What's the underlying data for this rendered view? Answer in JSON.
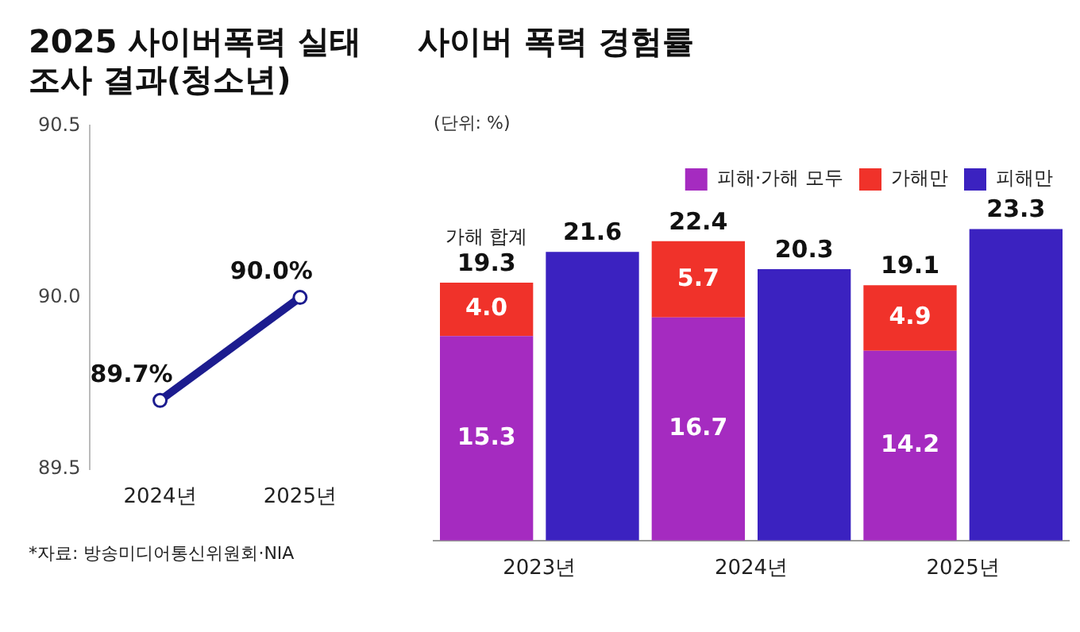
{
  "chart_data": [
    {
      "type": "line",
      "title": "2025 사이버폭력 실태조사 결과(청소년)",
      "categories": [
        "2024년",
        "2025년"
      ],
      "series": [
        {
          "color": "#1c1c8f",
          "values": [
            89.7,
            90.0
          ],
          "value_labels": [
            "89.7%",
            "90.0%"
          ]
        }
      ],
      "ylim": [
        89.5,
        90.5
      ],
      "yticks": [
        {
          "value": 89.5,
          "label": "89.5"
        },
        {
          "value": 90.0,
          "label": "90.0"
        },
        {
          "value": 90.5,
          "label": "90.5"
        }
      ],
      "grid": false,
      "legend": false,
      "marker": "circle",
      "line_style": "solid",
      "annotations": [
        "*자료: 방송미디어통신위원회·NIA"
      ]
    },
    {
      "type": "bar",
      "title": "사이버 폭력 경험률",
      "subtitle": "(단위: %)",
      "categories": [
        "2023년",
        null,
        "2024년",
        null,
        "2025년",
        null
      ],
      "stacked": true,
      "series": [
        {
          "name": "피해·가해 모두",
          "color": "#a52bc0",
          "values": [
            15.3,
            null,
            16.7,
            null,
            14.2,
            null
          ]
        },
        {
          "name": "가해만",
          "color": "#f0322a",
          "values": [
            4.0,
            null,
            5.7,
            null,
            4.9,
            null
          ],
          "value_labels": [
            "4.0",
            null,
            "5.7",
            null,
            "4.9",
            null
          ]
        },
        {
          "name": "피해만",
          "color": "#3b22c0",
          "values": [
            null,
            21.6,
            null,
            20.3,
            null,
            23.3
          ]
        }
      ],
      "data_labels": true,
      "totals": [
        "19.3",
        null,
        "22.4",
        null,
        "19.1",
        null
      ],
      "annotations": [
        {
          "text": "가해 합계",
          "x": "2023년",
          "y": 19.3
        }
      ],
      "grid": false,
      "legend": "top right",
      "tick_labels": "x"
    }
  ]
}
